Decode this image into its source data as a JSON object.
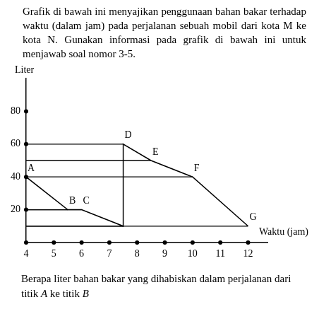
{
  "intro": "Grafik di bawah ini menyajikan penggunaan bahan bakar terhadap waktu (dalam jam) pada perjalanan sebuah mobil dari kota M ke kota N. Gunakan informasi pada grafik di bawah ini untuk menjawab soal nomor 3-5.",
  "chart_data": {
    "type": "line",
    "x_label": "Waktu (jam)",
    "y_label": "Liter",
    "series": [
      {
        "x": [
          4,
          5.5,
          6,
          7.5,
          7.5,
          8.5,
          10,
          12
        ],
        "values": [
          40,
          20,
          20,
          10,
          60,
          50,
          40,
          10
        ],
        "point_labels": [
          "A",
          "B",
          "C",
          null,
          "D",
          "E",
          "F",
          "G"
        ],
        "color": "#000000"
      }
    ],
    "xlim": [
      4,
      12.7
    ],
    "xticks": [
      4,
      5,
      6,
      7,
      8,
      9,
      10,
      11,
      12
    ],
    "ylim": [
      0,
      100
    ],
    "yticks": [
      20,
      40,
      60,
      80
    ],
    "grid": false
  },
  "question": "Berapa liter bahan bakar yang dihabiskan dalam perjalanan dari titik A ke titik B"
}
